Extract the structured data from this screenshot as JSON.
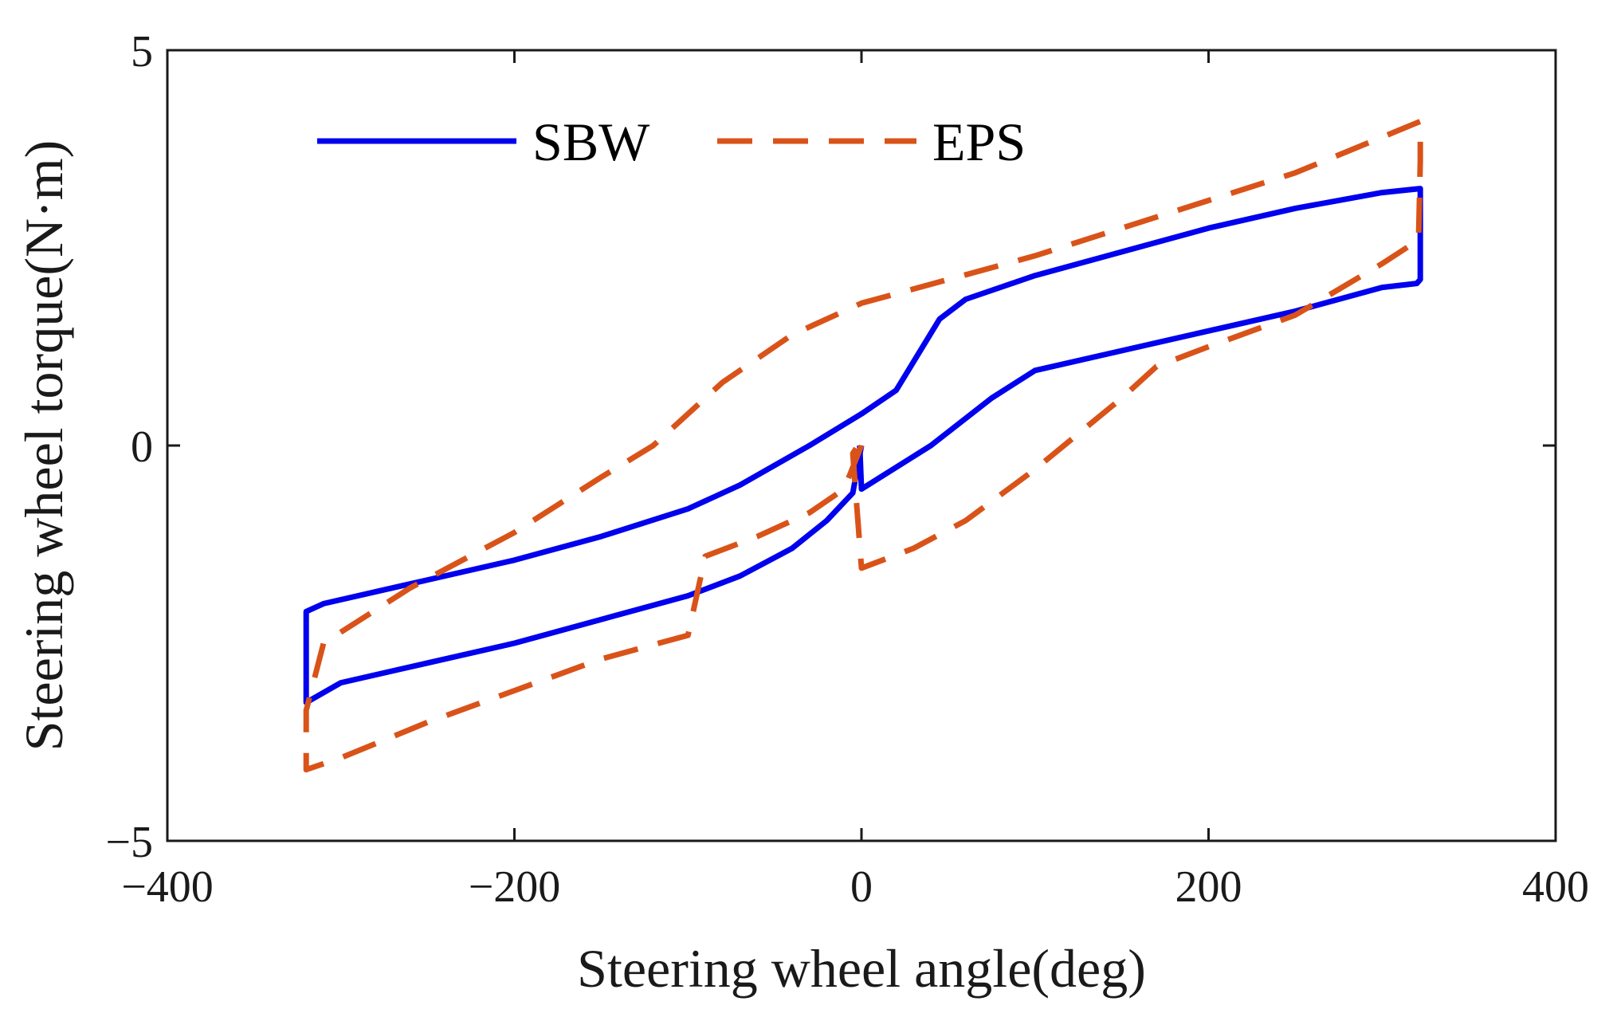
{
  "chart_data": {
    "type": "line",
    "title": "",
    "xlabel": "Steering wheel angle(deg)",
    "ylabel": "Steering wheel torque(N·m)",
    "xlim": [
      -400,
      400
    ],
    "ylim": [
      -5,
      5
    ],
    "xticks": [
      -400,
      -200,
      0,
      200,
      400
    ],
    "xtick_labels": [
      "−400",
      "−200",
      "0",
      "200",
      "400"
    ],
    "yticks": [
      -5,
      0,
      5
    ],
    "ytick_labels": [
      "−5",
      "0",
      "5"
    ],
    "grid": false,
    "legend_position": "top-left, horizontal",
    "series": [
      {
        "name": "SBW",
        "color": "#0000ee",
        "style": "solid",
        "points": [
          [
            0,
            0
          ],
          [
            -5,
            -0.6
          ],
          [
            -20,
            -0.95
          ],
          [
            -40,
            -1.3
          ],
          [
            -70,
            -1.65
          ],
          [
            -100,
            -1.9
          ],
          [
            -150,
            -2.2
          ],
          [
            -200,
            -2.5
          ],
          [
            -250,
            -2.75
          ],
          [
            -300,
            -3.0
          ],
          [
            -320,
            -3.25
          ],
          [
            -320,
            -2.1
          ],
          [
            -310,
            -2.0
          ],
          [
            -250,
            -1.7
          ],
          [
            -200,
            -1.45
          ],
          [
            -150,
            -1.15
          ],
          [
            -100,
            -0.8
          ],
          [
            -70,
            -0.5
          ],
          [
            -30,
            0.0
          ],
          [
            0,
            0.4
          ],
          [
            20,
            0.7
          ],
          [
            45,
            1.6
          ],
          [
            60,
            1.85
          ],
          [
            100,
            2.15
          ],
          [
            150,
            2.45
          ],
          [
            200,
            2.75
          ],
          [
            250,
            3.0
          ],
          [
            300,
            3.2
          ],
          [
            322,
            3.25
          ],
          [
            322,
            2.1
          ],
          [
            320,
            2.05
          ],
          [
            300,
            2.0
          ],
          [
            250,
            1.7
          ],
          [
            200,
            1.45
          ],
          [
            150,
            1.2
          ],
          [
            100,
            0.95
          ],
          [
            75,
            0.6
          ],
          [
            40,
            0.0
          ],
          [
            0,
            -0.55
          ],
          [
            -1,
            0.0
          ]
        ]
      },
      {
        "name": "EPS",
        "color": "#d95319",
        "style": "dashed",
        "points": [
          [
            0,
            0
          ],
          [
            -10,
            -0.55
          ],
          [
            -30,
            -0.85
          ],
          [
            -60,
            -1.15
          ],
          [
            -90,
            -1.4
          ],
          [
            -100,
            -2.4
          ],
          [
            -150,
            -2.7
          ],
          [
            -200,
            -3.1
          ],
          [
            -250,
            -3.5
          ],
          [
            -300,
            -3.95
          ],
          [
            -320,
            -4.1
          ],
          [
            -320,
            -3.35
          ],
          [
            -310,
            -2.5
          ],
          [
            -260,
            -1.8
          ],
          [
            -200,
            -1.1
          ],
          [
            -150,
            -0.4
          ],
          [
            -120,
            0.0
          ],
          [
            -80,
            0.8
          ],
          [
            -40,
            1.4
          ],
          [
            0,
            1.8
          ],
          [
            50,
            2.1
          ],
          [
            100,
            2.4
          ],
          [
            150,
            2.75
          ],
          [
            200,
            3.1
          ],
          [
            250,
            3.45
          ],
          [
            300,
            3.9
          ],
          [
            322,
            4.1
          ],
          [
            322,
            3.6
          ],
          [
            321,
            2.6
          ],
          [
            300,
            2.3
          ],
          [
            250,
            1.65
          ],
          [
            200,
            1.25
          ],
          [
            170,
            1.0
          ],
          [
            150,
            0.6
          ],
          [
            100,
            -0.3
          ],
          [
            60,
            -0.95
          ],
          [
            30,
            -1.3
          ],
          [
            0,
            -1.55
          ],
          [
            -5,
            -0.1
          ],
          [
            -2,
            0.0
          ]
        ]
      }
    ]
  }
}
